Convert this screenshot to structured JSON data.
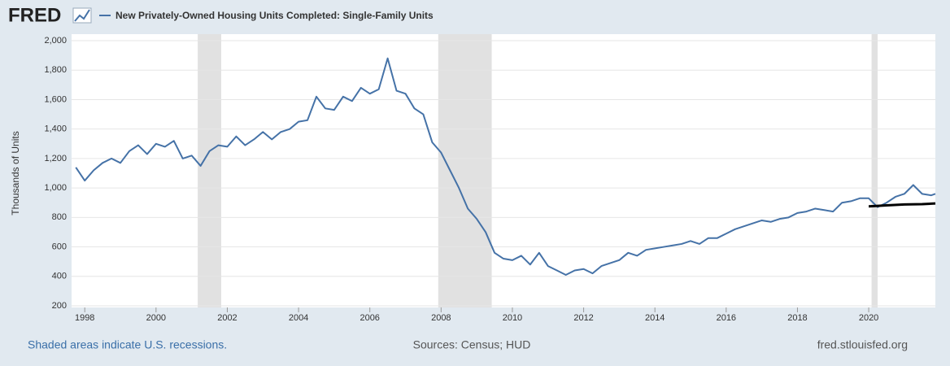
{
  "chart_data": {
    "type": "line",
    "logo": "FRED",
    "ylabel": "Thousands of Units",
    "footer_left": "Shaded areas indicate U.S. recessions.",
    "footer_center": "Sources: Census; HUD",
    "footer_right": "fred.stlouisfed.org",
    "xlim": [
      1997.63,
      2021.87
    ],
    "ylim": [
      200,
      2000
    ],
    "xticks": [
      1998,
      2000,
      2002,
      2004,
      2006,
      2008,
      2010,
      2012,
      2014,
      2016,
      2018,
      2020
    ],
    "yticks": [
      200,
      400,
      600,
      800,
      {
        "value": 1000,
        "label": "1,000"
      },
      {
        "value": 1200,
        "label": "1,200"
      },
      {
        "value": 1400,
        "label": "1,400"
      },
      {
        "value": 1600,
        "label": "1,600"
      },
      {
        "value": 1800,
        "label": "1,800"
      },
      {
        "value": 2000,
        "label": "2,000"
      }
    ],
    "grid": true,
    "recessions": [
      [
        2001.17,
        2001.83
      ],
      [
        2007.92,
        2009.42
      ],
      [
        2020.08,
        2020.25
      ]
    ],
    "series": [
      {
        "name": "New Privately-Owned Housing Units Completed: Single-Family Units",
        "color": "#4572a7",
        "x": [
          1997.75,
          1998.0,
          1998.25,
          1998.5,
          1998.75,
          1999.0,
          1999.25,
          1999.5,
          1999.75,
          2000.0,
          2000.25,
          2000.5,
          2000.75,
          2001.0,
          2001.25,
          2001.5,
          2001.75,
          2002.0,
          2002.25,
          2002.5,
          2002.75,
          2003.0,
          2003.25,
          2003.5,
          2003.75,
          2004.0,
          2004.25,
          2004.5,
          2004.75,
          2005.0,
          2005.25,
          2005.5,
          2005.75,
          2006.0,
          2006.25,
          2006.5,
          2006.75,
          2007.0,
          2007.25,
          2007.5,
          2007.75,
          2008.0,
          2008.25,
          2008.5,
          2008.75,
          2009.0,
          2009.25,
          2009.5,
          2009.75,
          2010.0,
          2010.25,
          2010.5,
          2010.75,
          2011.0,
          2011.25,
          2011.5,
          2011.75,
          2012.0,
          2012.25,
          2012.5,
          2012.75,
          2013.0,
          2013.25,
          2013.5,
          2013.75,
          2014.0,
          2014.25,
          2014.5,
          2014.75,
          2015.0,
          2015.25,
          2015.5,
          2015.75,
          2016.0,
          2016.25,
          2016.5,
          2016.75,
          2017.0,
          2017.25,
          2017.5,
          2017.75,
          2018.0,
          2018.25,
          2018.5,
          2018.75,
          2019.0,
          2019.25,
          2019.5,
          2019.75,
          2020.0,
          2020.25,
          2020.5,
          2020.75,
          2021.0,
          2021.25,
          2021.5,
          2021.75,
          2021.87
        ],
        "values": [
          1140,
          1050,
          1120,
          1170,
          1200,
          1170,
          1250,
          1290,
          1230,
          1300,
          1280,
          1320,
          1200,
          1220,
          1150,
          1250,
          1290,
          1280,
          1350,
          1290,
          1330,
          1380,
          1330,
          1380,
          1400,
          1450,
          1460,
          1620,
          1540,
          1530,
          1620,
          1590,
          1680,
          1640,
          1670,
          1880,
          1660,
          1640,
          1540,
          1500,
          1310,
          1240,
          1120,
          1000,
          860,
          790,
          700,
          560,
          520,
          510,
          540,
          480,
          560,
          470,
          440,
          410,
          440,
          450,
          420,
          470,
          490,
          510,
          560,
          540,
          580,
          590,
          600,
          610,
          620,
          640,
          620,
          660,
          660,
          690,
          720,
          740,
          760,
          780,
          770,
          790,
          800,
          830,
          840,
          860,
          850,
          840,
          900,
          910,
          930,
          930,
          870,
          900,
          940,
          960,
          1020,
          960,
          950,
          960
        ]
      },
      {
        "color": "#000000",
        "x": [
          2020.0,
          2020.5,
          2021.0,
          2021.5,
          2021.87
        ],
        "values": [
          875,
          882,
          888,
          890,
          895
        ]
      }
    ]
  }
}
